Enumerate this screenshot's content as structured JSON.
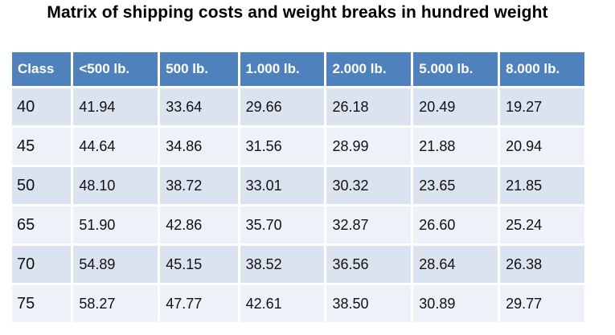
{
  "title": "Matrix of shipping costs and weight breaks in hundred weight",
  "headers": [
    "Class",
    "<500 lb.",
    "500 lb.",
    "1.000 lb.",
    "2.000 lb.",
    "5.000 lb.",
    "8.000 lb."
  ],
  "rows": [
    [
      "40",
      "41.94",
      "33.64",
      "29.66",
      "26.18",
      "20.49",
      "19.27"
    ],
    [
      "45",
      "44.64",
      "34.86",
      "31.56",
      "28.99",
      "21.88",
      "20.94"
    ],
    [
      "50",
      "48.10",
      "38.72",
      "33.01",
      "30.32",
      "23.65",
      "21.85"
    ],
    [
      "65",
      "51.90",
      "42.86",
      "35.70",
      "32.87",
      "26.60",
      "25.24"
    ],
    [
      "70",
      "54.89",
      "45.15",
      "38.52",
      "36.56",
      "28.64",
      "26.38"
    ],
    [
      "75",
      "58.27",
      "47.77",
      "42.61",
      "38.50",
      "30.89",
      "29.77"
    ]
  ],
  "colors": {
    "header_bg": "#4f81bd",
    "row_dark": "#dbe3f0",
    "row_light": "#edf1f8"
  }
}
